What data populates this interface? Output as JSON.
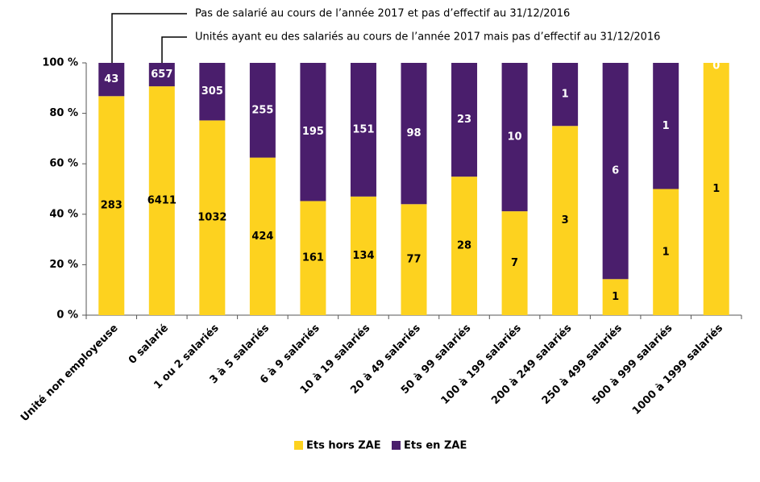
{
  "chart_data": {
    "type": "bar",
    "stacking": "percent",
    "annotations": [
      "Pas de salarié au cours de l’année 2017 et pas d’effectif au 31/12/2016",
      "Unités ayant eu des salariés au cours de l’année 2017 mais pas d’effectif au 31/12/2016"
    ],
    "categories": [
      "Unité non employeuse",
      "0 salarié",
      "1 ou 2 salariés",
      "3 à 5 salariés",
      "6 à 9 salariés",
      "10 à 19 salariés",
      "20 à 49 salariés",
      "50 à 99 salariés",
      "100 à 199 salariés",
      "200 à 249 salariés",
      "250 à 499 salariés",
      "500 à 999 salariés",
      "1000 à 1999 salariés"
    ],
    "series": [
      {
        "name": "Ets hors ZAE",
        "color": "#fdd21f",
        "values": [
          283,
          6411,
          1032,
          424,
          161,
          134,
          77,
          28,
          7,
          3,
          1,
          1,
          1
        ]
      },
      {
        "name": "Ets en ZAE",
        "color": "#4a1e6c",
        "values": [
          43,
          657,
          305,
          255,
          195,
          151,
          98,
          23,
          10,
          1,
          6,
          1,
          0
        ]
      }
    ],
    "ylim": [
      0,
      100
    ],
    "yticks": [
      {
        "value": 0,
        "label": "0 %"
      },
      {
        "value": 20,
        "label": "20 %"
      },
      {
        "value": 40,
        "label": "40 %"
      },
      {
        "value": 60,
        "label": "60 %"
      },
      {
        "value": 80,
        "label": "80 %"
      },
      {
        "value": 100,
        "label": "100 %"
      }
    ],
    "legend": "bottom"
  }
}
